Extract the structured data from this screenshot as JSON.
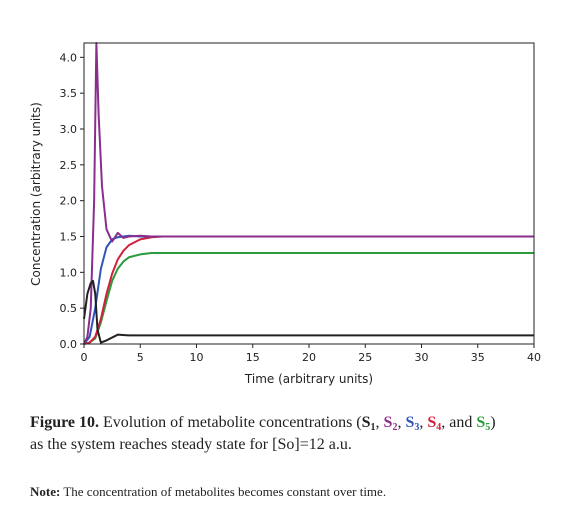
{
  "chart_data": {
    "type": "line",
    "xlabel": "Time (arbitrary units)",
    "ylabel": "Concentration (arbitrary units)",
    "xlim": [
      0,
      40
    ],
    "ylim": [
      0,
      4.2
    ],
    "xticks": [
      0,
      5,
      10,
      15,
      20,
      25,
      30,
      35,
      40
    ],
    "yticks": [
      0.0,
      0.5,
      1.0,
      1.5,
      2.0,
      2.5,
      3.0,
      3.5,
      4.0
    ],
    "grid": false,
    "series": [
      {
        "color": "#222222",
        "x": [
          0,
          0.3,
          0.6,
          0.8,
          1.0,
          1.2,
          1.5,
          2.0,
          3.0,
          4.0,
          6.0,
          40
        ],
        "y": [
          0.35,
          0.7,
          0.85,
          0.88,
          0.7,
          0.2,
          0.02,
          0.05,
          0.13,
          0.12,
          0.12,
          0.12
        ]
      },
      {
        "color": "#8a2e8e",
        "x": [
          0,
          0.3,
          0.6,
          0.9,
          1.1,
          1.3,
          1.6,
          2.0,
          2.5,
          3.0,
          3.5,
          4.0,
          5.0,
          6.0,
          40
        ],
        "y": [
          0.0,
          0.1,
          0.5,
          2.0,
          4.2,
          3.2,
          2.2,
          1.6,
          1.43,
          1.55,
          1.48,
          1.5,
          1.51,
          1.5,
          1.5
        ]
      },
      {
        "color": "#2f55b8",
        "x": [
          0,
          0.5,
          1.0,
          1.5,
          2.0,
          2.5,
          3.0,
          4.0,
          5.0,
          6.0,
          40
        ],
        "y": [
          0.0,
          0.1,
          0.5,
          1.05,
          1.35,
          1.46,
          1.49,
          1.51,
          1.5,
          1.5,
          1.5
        ]
      },
      {
        "color": "#d1203c",
        "x": [
          0,
          0.5,
          1.0,
          1.5,
          2.0,
          2.5,
          3.0,
          3.5,
          4.0,
          5.0,
          6.0,
          7.0,
          8.0,
          40
        ],
        "y": [
          0.0,
          0.02,
          0.1,
          0.35,
          0.7,
          0.98,
          1.18,
          1.3,
          1.38,
          1.46,
          1.49,
          1.5,
          1.5,
          1.5
        ]
      },
      {
        "color": "#2a9a3a",
        "x": [
          0,
          0.5,
          1.0,
          1.5,
          2.0,
          2.5,
          3.0,
          3.5,
          4.0,
          5.0,
          6.0,
          7.0,
          40
        ],
        "y": [
          0.0,
          0.02,
          0.08,
          0.3,
          0.6,
          0.88,
          1.05,
          1.15,
          1.21,
          1.25,
          1.27,
          1.27,
          1.27
        ]
      }
    ]
  },
  "caption": {
    "fig_label": "Figure 10.",
    "text_a": " Evolution of metabolite concentrations (",
    "s": "S",
    "sub1": "1",
    "sub2": "2",
    "sub3": "3",
    "sub4": "4",
    "sub5": "5",
    "sep": ", ",
    "and": ", and ",
    "text_b": ")",
    "text_c": "as the system reaches steady state for [So]=12 a.u."
  },
  "note": {
    "label": "Note:",
    "text": " The concentration of metabolites becomes constant over time."
  }
}
